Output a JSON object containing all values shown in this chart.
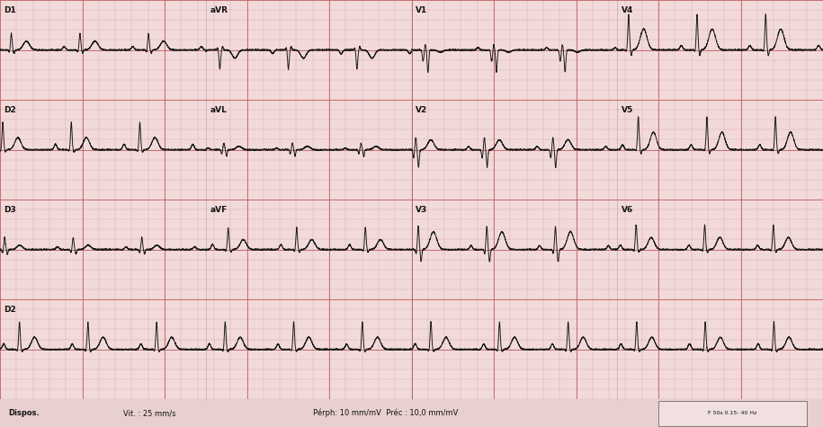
{
  "bg_color": "#f2dada",
  "grid_minor_color": "#daa0a0",
  "grid_major_color": "#c06060",
  "ecg_color": "#1a1a1a",
  "footer_bg": "#e8d0d0",
  "leads_row1": [
    "D1",
    "aVR",
    "V1",
    "V4"
  ],
  "leads_row2": [
    "D2",
    "aVL",
    "V2",
    "V5"
  ],
  "leads_row3": [
    "D3",
    "aVF",
    "V3",
    "V6"
  ],
  "leads_row4": [
    "D2"
  ],
  "footer_text_left": "Dispos.",
  "footer_text_vit": "Vit. : 25 mm/s",
  "footer_text_perph": "Pérph: 10 mm/mV  Préc : 10,0 mm/mV",
  "footer_box_text": "F 50s 0.15- 40 Hz",
  "ecg_linewidth": 0.7,
  "heart_rate": 72,
  "num_rows": 4,
  "minor_step": 0.04,
  "major_step": 0.2
}
